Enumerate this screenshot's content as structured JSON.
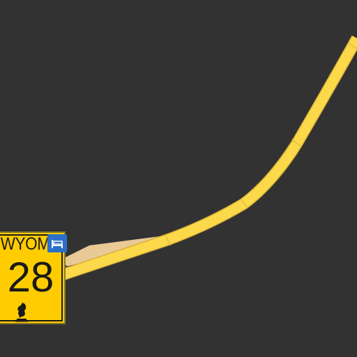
{
  "map": {
    "background_color": "#323232",
    "road_color": "#fcd94a",
    "road_casing_color": "#e0b62e",
    "secondary_area_color": "#e9c996"
  },
  "route_shield": {
    "state_text": "WYOMING",
    "route_number": "28",
    "background_color": "#fecc00",
    "text_color": "#1a1a1a",
    "emblem": "bucking-horse-icon"
  },
  "poi": {
    "icon": "lodging-bed-icon",
    "background_color": "#2a6fc9"
  }
}
